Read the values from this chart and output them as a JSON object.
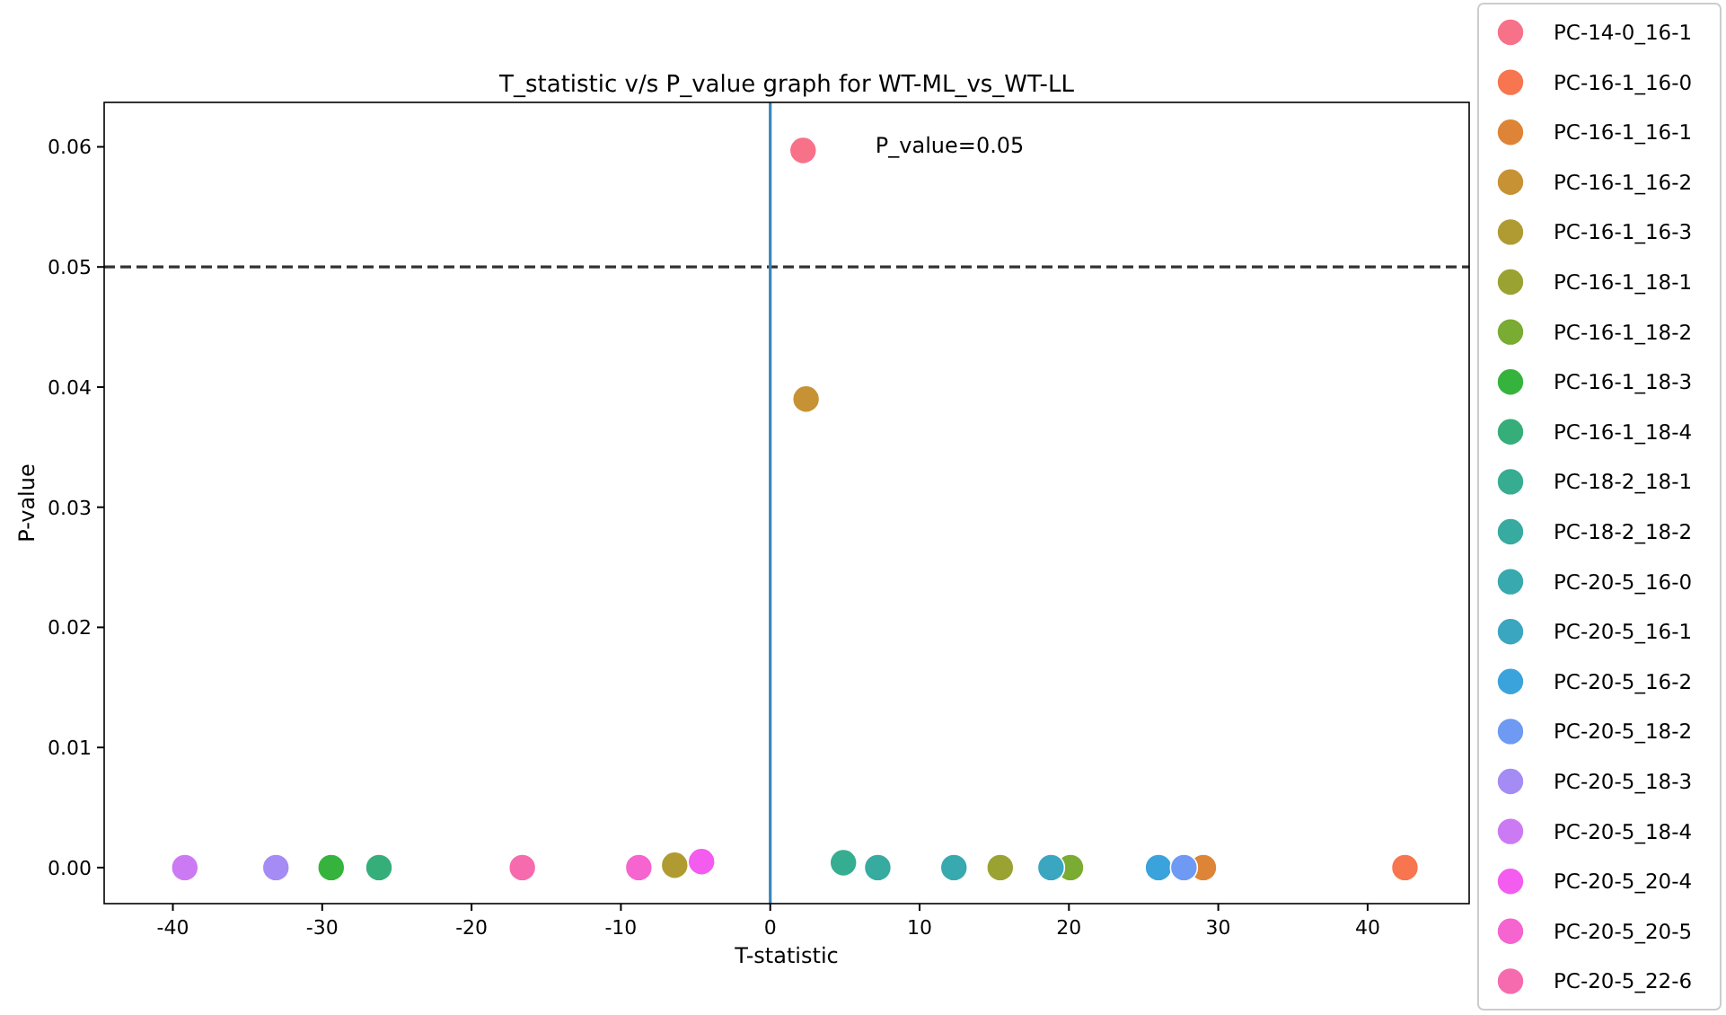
{
  "chart_data": {
    "type": "scatter",
    "title": "T_statistic v/s P_value graph for WT-ML_vs_WT-LL",
    "xlabel": "T-statistic",
    "ylabel": "P-value",
    "xlim": [
      -44.6,
      46.8
    ],
    "xticks": [
      -40,
      -30,
      -20,
      -10,
      0,
      10,
      20,
      30,
      40
    ],
    "ylim": [
      -0.003,
      0.0637
    ],
    "yticks": [
      {
        "value": 0,
        "label": "0.00"
      },
      {
        "value": 0.01,
        "label": "0.01"
      },
      {
        "value": 0.02,
        "label": "0.02"
      },
      {
        "value": 0.03,
        "label": "0.03"
      },
      {
        "value": 0.04,
        "label": "0.04"
      },
      {
        "value": 0.05,
        "label": "0.05"
      },
      {
        "value": 0.06,
        "label": "0.06"
      }
    ],
    "grid": false,
    "legend": "right",
    "marker": "circle",
    "annotations": [
      "P_value=0.05"
    ],
    "ref_lines": [
      {
        "axis": "y",
        "value": 0.05,
        "color": "#333333",
        "line_style": "dashed"
      },
      {
        "axis": "x",
        "value": 0,
        "color": "#3b86b9",
        "line_style": "solid"
      }
    ],
    "series": [
      {
        "name": "PC-14-0_16-1",
        "color": "#f77189",
        "x": [
          2.2
        ],
        "values": [
          0.0597
        ]
      },
      {
        "name": "PC-16-1_16-0",
        "color": "#f7754f",
        "x": [
          42.5
        ],
        "values": [
          0
        ]
      },
      {
        "name": "PC-16-1_16-1",
        "color": "#dd8436",
        "x": [
          29.0
        ],
        "values": [
          0
        ]
      },
      {
        "name": "PC-16-1_16-2",
        "color": "#c69233",
        "x": [
          2.4
        ],
        "values": [
          0.039
        ]
      },
      {
        "name": "PC-16-1_16-3",
        "color": "#b09b32",
        "x": [
          -6.4
        ],
        "values": [
          0.0002
        ]
      },
      {
        "name": "PC-16-1_18-1",
        "color": "#9aa332",
        "x": [
          15.4
        ],
        "values": [
          0
        ]
      },
      {
        "name": "PC-16-1_18-2",
        "color": "#7aab32",
        "x": [
          20.1
        ],
        "values": [
          0
        ]
      },
      {
        "name": "PC-16-1_18-3",
        "color": "#36b33c",
        "x": [
          -29.4
        ],
        "values": [
          0
        ]
      },
      {
        "name": "PC-16-1_18-4",
        "color": "#35ae79",
        "x": [
          -26.2
        ],
        "values": [
          0
        ]
      },
      {
        "name": "PC-18-2_18-1",
        "color": "#36ad90",
        "x": [
          4.9
        ],
        "values": [
          0.0004
        ]
      },
      {
        "name": "PC-18-2_18-2",
        "color": "#37aba0",
        "x": [
          7.2
        ],
        "values": [
          0
        ]
      },
      {
        "name": "PC-20-5_16-0",
        "color": "#38a9ae",
        "x": [
          12.3
        ],
        "values": [
          0
        ]
      },
      {
        "name": "PC-20-5_16-1",
        "color": "#3aa6c0",
        "x": [
          18.8
        ],
        "values": [
          0
        ]
      },
      {
        "name": "PC-20-5_16-2",
        "color": "#3ba3db",
        "x": [
          26.0
        ],
        "values": [
          0
        ]
      },
      {
        "name": "PC-20-5_18-2",
        "color": "#6e9af4",
        "x": [
          27.7
        ],
        "values": [
          0
        ]
      },
      {
        "name": "PC-20-5_18-3",
        "color": "#a48cf4",
        "x": [
          -33.1
        ],
        "values": [
          0
        ]
      },
      {
        "name": "PC-20-5_18-4",
        "color": "#cc7af4",
        "x": [
          -39.2
        ],
        "values": [
          0
        ]
      },
      {
        "name": "PC-20-5_20-4",
        "color": "#f45cf0",
        "x": [
          -4.6
        ],
        "values": [
          0.0005
        ]
      },
      {
        "name": "PC-20-5_20-5",
        "color": "#f564cf",
        "x": [
          -8.8
        ],
        "values": [
          0
        ]
      },
      {
        "name": "PC-20-5_22-6",
        "color": "#f66bad",
        "x": [
          -16.6
        ],
        "values": [
          0
        ]
      }
    ]
  }
}
